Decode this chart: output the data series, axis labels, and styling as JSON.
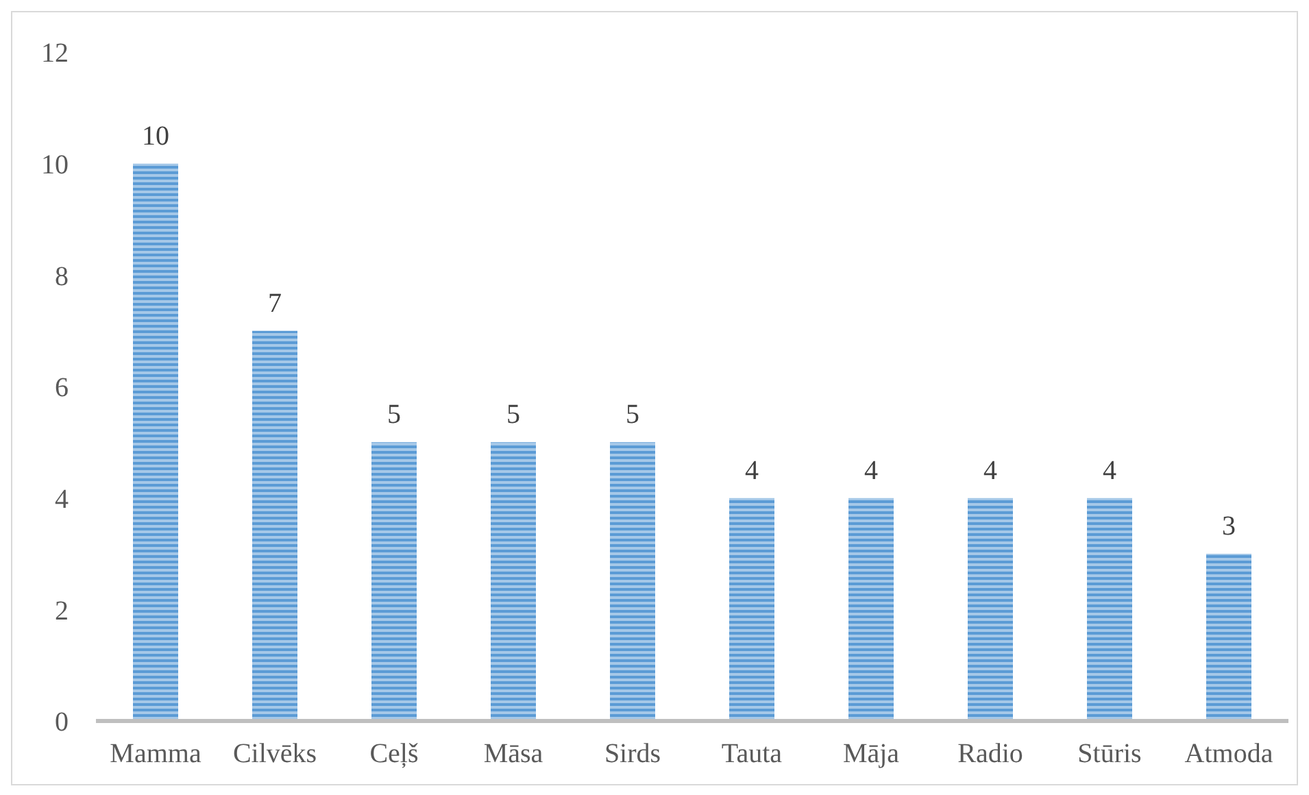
{
  "chart_data": {
    "type": "bar",
    "categories": [
      "Mamma",
      "Cilvēks",
      "Ceļš",
      "Māsa",
      "Sirds",
      "Tauta",
      "Māja",
      "Radio",
      "Stūris",
      "Atmoda"
    ],
    "values": [
      10,
      7,
      5,
      5,
      5,
      4,
      4,
      4,
      4,
      3
    ],
    "color": "#5b9bd5",
    "ylim": [
      0,
      12
    ],
    "yticks": [
      0,
      2,
      4,
      6,
      8,
      10,
      12
    ],
    "data_labels": true
  }
}
